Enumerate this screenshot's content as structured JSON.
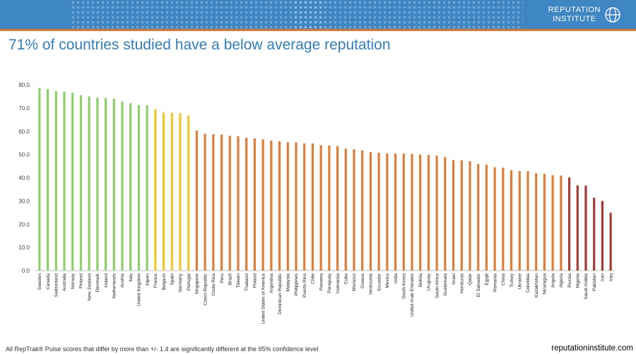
{
  "header": {
    "logo_line1": "REPUTATION",
    "logo_line2": "INSTITUTE",
    "background_color": "#3f86c4",
    "accent_color": "#e07a2a"
  },
  "title": "71% of countries studied have a below average reputation",
  "footnote": "All RepTrak® Pulse scores that differ by more than +/- 1.4 are significantly different at the 95% confidence level",
  "credit": "reputationinstitute.com",
  "chart_data": {
    "type": "bar",
    "title": "71% of countries studied have a below average reputation",
    "xlabel": "",
    "ylabel": "",
    "ylim": [
      0,
      80
    ],
    "yticks": [
      "0.0",
      "10.0",
      "20.0",
      "30.0",
      "40.0",
      "50.0",
      "60.0",
      "70.0",
      "80.0"
    ],
    "grid": false,
    "legend": "none",
    "categories": [
      "Sweden",
      "Canada",
      "Switzerland",
      "Australia",
      "Norway",
      "Finland",
      "New Zealand",
      "Denmark",
      "Ireland",
      "Netherlands",
      "Austria",
      "Italy",
      "United Kingdom",
      "Japan",
      "France",
      "Belgium",
      "Spain",
      "Germany",
      "Portugal",
      "Singapore",
      "Czech Republic",
      "Costa Rica",
      "Peru",
      "Brazil",
      "Taiwan",
      "Thailand",
      "Poland",
      "United States of America",
      "Argentina",
      "Dominican Republic",
      "Malaysia",
      "Philippines",
      "Puerto Rico",
      "Chile",
      "Panama",
      "Paraguay",
      "Indonesia",
      "Cuba",
      "Morocco",
      "Greece",
      "Venezuela",
      "Ecuador",
      "Mexico",
      "India",
      "South Korea",
      "United Arab Emirates",
      "Bolivia",
      "Uruguay",
      "South Africa",
      "Guatemala",
      "Israel",
      "Honduras",
      "Qatar",
      "El Salvador",
      "Egypt",
      "Romania",
      "China",
      "Turkey",
      "Ukraine",
      "Colombia",
      "Kazakhstan",
      "Nicaragua",
      "Angola",
      "Algeria",
      "Russia",
      "Nigeria",
      "Saudi Arabia",
      "Pakistan",
      "Iran",
      "Iraq"
    ],
    "values": [
      78.6,
      78.1,
      77.3,
      77.1,
      76.6,
      75.5,
      75.0,
      74.5,
      74.3,
      74.0,
      72.8,
      72.1,
      71.3,
      71.2,
      69.5,
      68.1,
      68.0,
      67.8,
      66.8,
      60.3,
      58.9,
      58.7,
      58.6,
      58.0,
      57.9,
      57.2,
      56.9,
      56.5,
      56.0,
      55.7,
      55.3,
      55.2,
      54.8,
      54.7,
      54.0,
      53.8,
      53.6,
      52.5,
      52.2,
      51.8,
      51.0,
      50.8,
      50.5,
      50.4,
      50.4,
      50.3,
      50.0,
      49.8,
      49.5,
      48.9,
      47.6,
      47.5,
      47.1,
      45.9,
      45.6,
      44.5,
      44.3,
      43.2,
      42.9,
      42.8,
      41.9,
      41.7,
      41.1,
      40.9,
      40.1,
      36.7,
      36.6,
      31.4,
      30.0,
      24.9
    ],
    "colors": {
      "green": "#8fcf6b",
      "yellow": "#f2c62a",
      "orange": "#dd7f3a",
      "red": "#a83a35"
    },
    "color_groups": [
      {
        "color": "green",
        "count": 14
      },
      {
        "color": "yellow",
        "count": 5
      },
      {
        "color": "orange",
        "count": 45
      },
      {
        "color": "red",
        "count": 6
      }
    ]
  }
}
